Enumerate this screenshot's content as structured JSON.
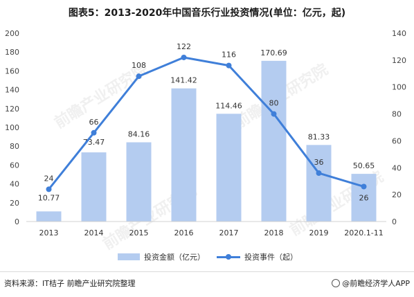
{
  "title": "图表5：2013-2020年中国音乐行业投资情况(单位：亿元，起)",
  "chart_data": {
    "type": "bar",
    "categories": [
      "2013",
      "2014",
      "2015",
      "2016",
      "2017",
      "2018",
      "2019",
      "2020.1-11"
    ],
    "series": [
      {
        "name": "投资金额（亿元）",
        "type": "bar",
        "axis": "left",
        "values": [
          10.77,
          73.47,
          84.16,
          141.42,
          114.46,
          170.69,
          81.33,
          50.65
        ],
        "labels": [
          "10.77",
          "73.47",
          "84.16",
          "141.42",
          "114.46",
          "170.69",
          "81.33",
          "50.65"
        ]
      },
      {
        "name": "投资事件（起）",
        "type": "line",
        "axis": "right",
        "values": [
          24,
          66,
          108,
          122,
          116,
          80,
          36,
          26
        ],
        "labels": [
          "24",
          "66",
          "108",
          "122",
          "116",
          "80",
          "36",
          "26"
        ]
      }
    ],
    "left_axis": {
      "ylim": [
        0,
        200
      ],
      "ticks": [
        "0",
        "20",
        "40",
        "60",
        "80",
        "100",
        "120",
        "140",
        "160",
        "180",
        "200"
      ]
    },
    "right_axis": {
      "ylim": [
        0,
        140
      ],
      "ticks": [
        "0",
        "20",
        "40",
        "60",
        "80",
        "100",
        "120",
        "140"
      ]
    },
    "grid": false,
    "legend": "bottom",
    "colors": {
      "bar": "#b4ccf0",
      "line": "#3f7fd9"
    }
  },
  "source": "资料来源：IT桔子 前瞻产业研究院整理",
  "brand": "@前瞻经济学人APP",
  "brand_icon": "qianzhan-logo-icon",
  "watermark": "前瞻产业研究院"
}
